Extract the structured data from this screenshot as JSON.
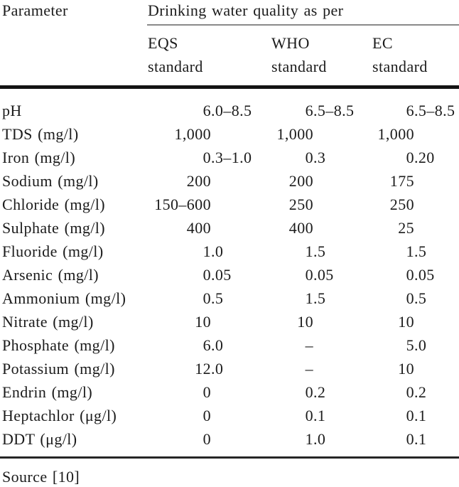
{
  "table": {
    "col1_header": "Parameter",
    "group_header": "Drinking water quality as per",
    "columns": [
      {
        "id": "eqs",
        "line1": "EQS",
        "line2": "standard"
      },
      {
        "id": "who",
        "line1": "WHO",
        "line2": "standard"
      },
      {
        "id": "ec",
        "line1": "EC",
        "line2": "standard"
      }
    ],
    "rows": [
      {
        "parameter": "pH",
        "eqs": "6.0–8.5",
        "who": "6.5–8.5",
        "ec": "6.5–8.5"
      },
      {
        "parameter": "TDS (mg/l)",
        "eqs": "1,000",
        "who": "1,000",
        "ec": "1,000"
      },
      {
        "parameter": "Iron (mg/l)",
        "eqs": "0.3–1.0",
        "who": "0.3",
        "ec": "0.20"
      },
      {
        "parameter": "Sodium (mg/l)",
        "eqs": "200",
        "who": "200",
        "ec": "175"
      },
      {
        "parameter": "Chloride (mg/l)",
        "eqs": "150–600",
        "who": "250",
        "ec": "250"
      },
      {
        "parameter": "Sulphate (mg/l)",
        "eqs": "400",
        "who": "400",
        "ec": "25"
      },
      {
        "parameter": "Fluoride (mg/l)",
        "eqs": "1.0",
        "who": "1.5",
        "ec": "1.5"
      },
      {
        "parameter": "Arsenic (mg/l)",
        "eqs": "0.05",
        "who": "0.05",
        "ec": "0.05"
      },
      {
        "parameter": "Ammonium (mg/l)",
        "eqs": "0.5",
        "who": "1.5",
        "ec": "0.5"
      },
      {
        "parameter": "Nitrate (mg/l)",
        "eqs": "10",
        "who": "10",
        "ec": "10"
      },
      {
        "parameter": "Phosphate (mg/l)",
        "eqs": "6.0",
        "who": "–",
        "ec": "5.0"
      },
      {
        "parameter": "Potassium (mg/l)",
        "eqs": "12.0",
        "who": "–",
        "ec": "10"
      },
      {
        "parameter": "Endrin (mg/l)",
        "eqs": "0",
        "who": "0.2",
        "ec": "0.2"
      },
      {
        "parameter": "Heptachlor (μg/l)",
        "eqs": "0",
        "who": "0.1",
        "ec": "0.1"
      },
      {
        "parameter": "DDT (μg/l)",
        "eqs": "0",
        "who": "1.0",
        "ec": "0.1"
      }
    ],
    "source_note": "Source [10]"
  },
  "colors": {
    "background": "#ffffff",
    "text": "#1b1b1b",
    "thick_rule": "#141414",
    "thin_rule": "#262626",
    "gray_rule": "#8a8a8a"
  }
}
